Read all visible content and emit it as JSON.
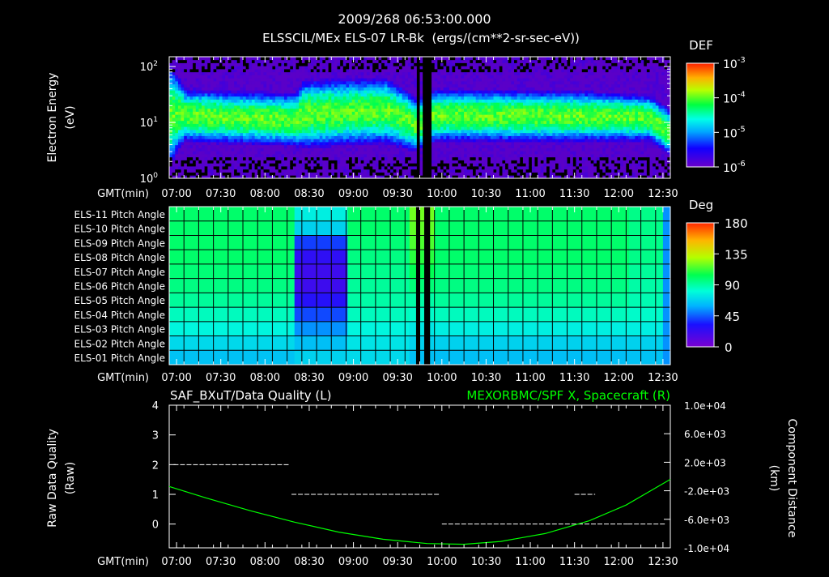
{
  "header": {
    "timestamp": "2009/268 06:53:00.000",
    "subtitle": "ELSSCIL/MEx ELS-07 LR-Bk  (ergs/(cm**2-sr-sec-eV))"
  },
  "chart_data": [
    {
      "type": "heatmap",
      "name": "electron-spectrogram",
      "ylabel": "Electron Energy",
      "yunit": "(eV)",
      "yscale": "log",
      "ylim": [
        1,
        150
      ],
      "y_ticks": [
        {
          "base": "10",
          "exp": "0",
          "value": 1
        },
        {
          "base": "10",
          "exp": "1",
          "value": 10
        },
        {
          "base": "10",
          "exp": "2",
          "value": 100
        }
      ],
      "xlim_min": [
        415,
        755
      ],
      "x_ticks": [
        "07:00",
        "07:30",
        "08:00",
        "08:30",
        "09:00",
        "09:30",
        "10:00",
        "10:30",
        "11:00",
        "11:30",
        "12:00",
        "12:30"
      ],
      "x_tick_min": [
        420,
        450,
        480,
        510,
        540,
        570,
        600,
        630,
        660,
        690,
        720,
        750
      ],
      "x_label": "GMT(min)",
      "data_gaps_min": [
        [
          582.5,
          585
        ],
        [
          588,
          592
        ]
      ],
      "peak_band_eV": [
        {
          "t": 415,
          "lo": 3,
          "hi": 60
        },
        {
          "t": 425,
          "lo": 6,
          "hi": 30
        },
        {
          "t": 500,
          "lo": 5,
          "hi": 25
        },
        {
          "t": 505,
          "lo": 5,
          "hi": 40
        },
        {
          "t": 560,
          "lo": 6,
          "hi": 45
        },
        {
          "t": 582,
          "lo": 4,
          "hi": 20
        },
        {
          "t": 595,
          "lo": 6,
          "hi": 30
        },
        {
          "t": 700,
          "lo": 6,
          "hi": 28
        },
        {
          "t": 740,
          "lo": 6,
          "hi": 24
        },
        {
          "t": 755,
          "lo": 3,
          "hi": 12
        }
      ],
      "colorbar": {
        "label": "DEF",
        "ticks": [
          {
            "base": "10",
            "exp": "-3"
          },
          {
            "base": "10",
            "exp": "-4"
          },
          {
            "base": "10",
            "exp": "-5"
          },
          {
            "base": "10",
            "exp": "-6"
          }
        ]
      }
    },
    {
      "type": "heatmap",
      "name": "pitch-angle",
      "rows": [
        "ELS-11 Pitch Angle",
        "ELS-10 Pitch Angle",
        "ELS-09 Pitch Angle",
        "ELS-08 Pitch Angle",
        "ELS-07 Pitch Angle",
        "ELS-06 Pitch Angle",
        "ELS-05 Pitch Angle",
        "ELS-04 Pitch Angle",
        "ELS-03 Pitch Angle",
        "ELS-02 Pitch Angle",
        "ELS-01 Pitch Angle"
      ],
      "x_label": "GMT(min)",
      "x_ticks": [
        "07:00",
        "07:30",
        "08:00",
        "08:30",
        "09:00",
        "09:30",
        "10:00",
        "10:30",
        "11:00",
        "11:30",
        "12:00",
        "12:30"
      ],
      "segments": [
        {
          "t0": 415,
          "t1": 500,
          "deg": [
            100,
            100,
            100,
            100,
            98,
            96,
            92,
            86,
            80,
            72,
            66
          ]
        },
        {
          "t0": 500,
          "t1": 536,
          "deg": [
            78,
            70,
            40,
            25,
            20,
            20,
            28,
            42,
            55,
            65,
            70
          ]
        },
        {
          "t0": 536,
          "t1": 578,
          "deg": [
            100,
            100,
            98,
            96,
            94,
            92,
            90,
            86,
            80,
            75,
            72
          ]
        },
        {
          "t0": 578,
          "t1": 595,
          "deg": [
            120,
            118,
            115,
            110,
            104,
            98,
            90,
            84,
            76,
            70,
            65
          ]
        },
        {
          "t0": 595,
          "t1": 727,
          "deg": [
            100,
            100,
            100,
            100,
            98,
            96,
            92,
            86,
            78,
            70,
            65
          ]
        },
        {
          "t0": 727,
          "t1": 750,
          "deg": [
            95,
            95,
            95,
            95,
            92,
            90,
            88,
            84,
            78,
            70,
            66
          ]
        },
        {
          "t0": 750,
          "t1": 755,
          "deg": [
            55,
            55,
            55,
            55,
            55,
            55,
            55,
            55,
            55,
            55,
            55
          ]
        }
      ],
      "colorbar": {
        "label": "Deg",
        "ticks": [
          "180",
          "135",
          "90",
          "45",
          "0"
        ],
        "values": [
          180,
          135,
          90,
          45,
          0
        ]
      }
    },
    {
      "type": "line",
      "name": "data-quality",
      "title_left": "SAF_BXuT/Data Quality (L)",
      "title_right": "MEXORBMC/SPF X, Spacecraft (R)",
      "ylabel_left": "Raw Data Quality",
      "ylabel_left_unit": "(Raw)",
      "ylabel_right": "Component Distance",
      "ylabel_right_unit": "(km)",
      "ylim_left": [
        -0.8,
        4
      ],
      "y_ticks_left": [
        "4",
        "3",
        "2",
        "1",
        "0"
      ],
      "y_tick_left_values": [
        4,
        3,
        2,
        1,
        0
      ],
      "ylim_right": [
        -10000,
        10000
      ],
      "y_ticks_right": [
        "1.0e+04",
        "6.0e+03",
        "2.0e+03",
        "-2.0e+03",
        "-6.0e+03",
        "-1.0e+04"
      ],
      "y_tick_right_values": [
        10000,
        6000,
        2000,
        -2000,
        -6000,
        -10000
      ],
      "x_label": "GMT(min)",
      "x_ticks": [
        "07:00",
        "07:30",
        "08:00",
        "08:30",
        "09:00",
        "09:30",
        "10:00",
        "10:30",
        "11:00",
        "11:30",
        "12:00",
        "12:30"
      ],
      "quality_segments": [
        {
          "t0": 418,
          "t1": 496,
          "v": 2
        },
        {
          "t0": 498,
          "t1": 598,
          "v": 1
        },
        {
          "t0": 600,
          "t1": 688,
          "v": 0
        },
        {
          "t0": 688,
          "t1": 726,
          "v": 0
        },
        {
          "t0": 690,
          "t1": 704,
          "v": 1
        },
        {
          "t0": 726,
          "t1": 752,
          "v": 0
        }
      ],
      "distance_series": {
        "name": "MEXORBMC/SPF X",
        "t": [
          415,
          440,
          470,
          500,
          530,
          560,
          590,
          615,
          640,
          670,
          700,
          725,
          755
        ],
        "km": [
          -1400,
          -3000,
          -4800,
          -6400,
          -7800,
          -8800,
          -9400,
          -9500,
          -9100,
          -8000,
          -6200,
          -4000,
          -400
        ]
      }
    }
  ],
  "colors": {
    "background": "#000000",
    "text": "#ffffff",
    "accent_green": "#00ff00"
  }
}
